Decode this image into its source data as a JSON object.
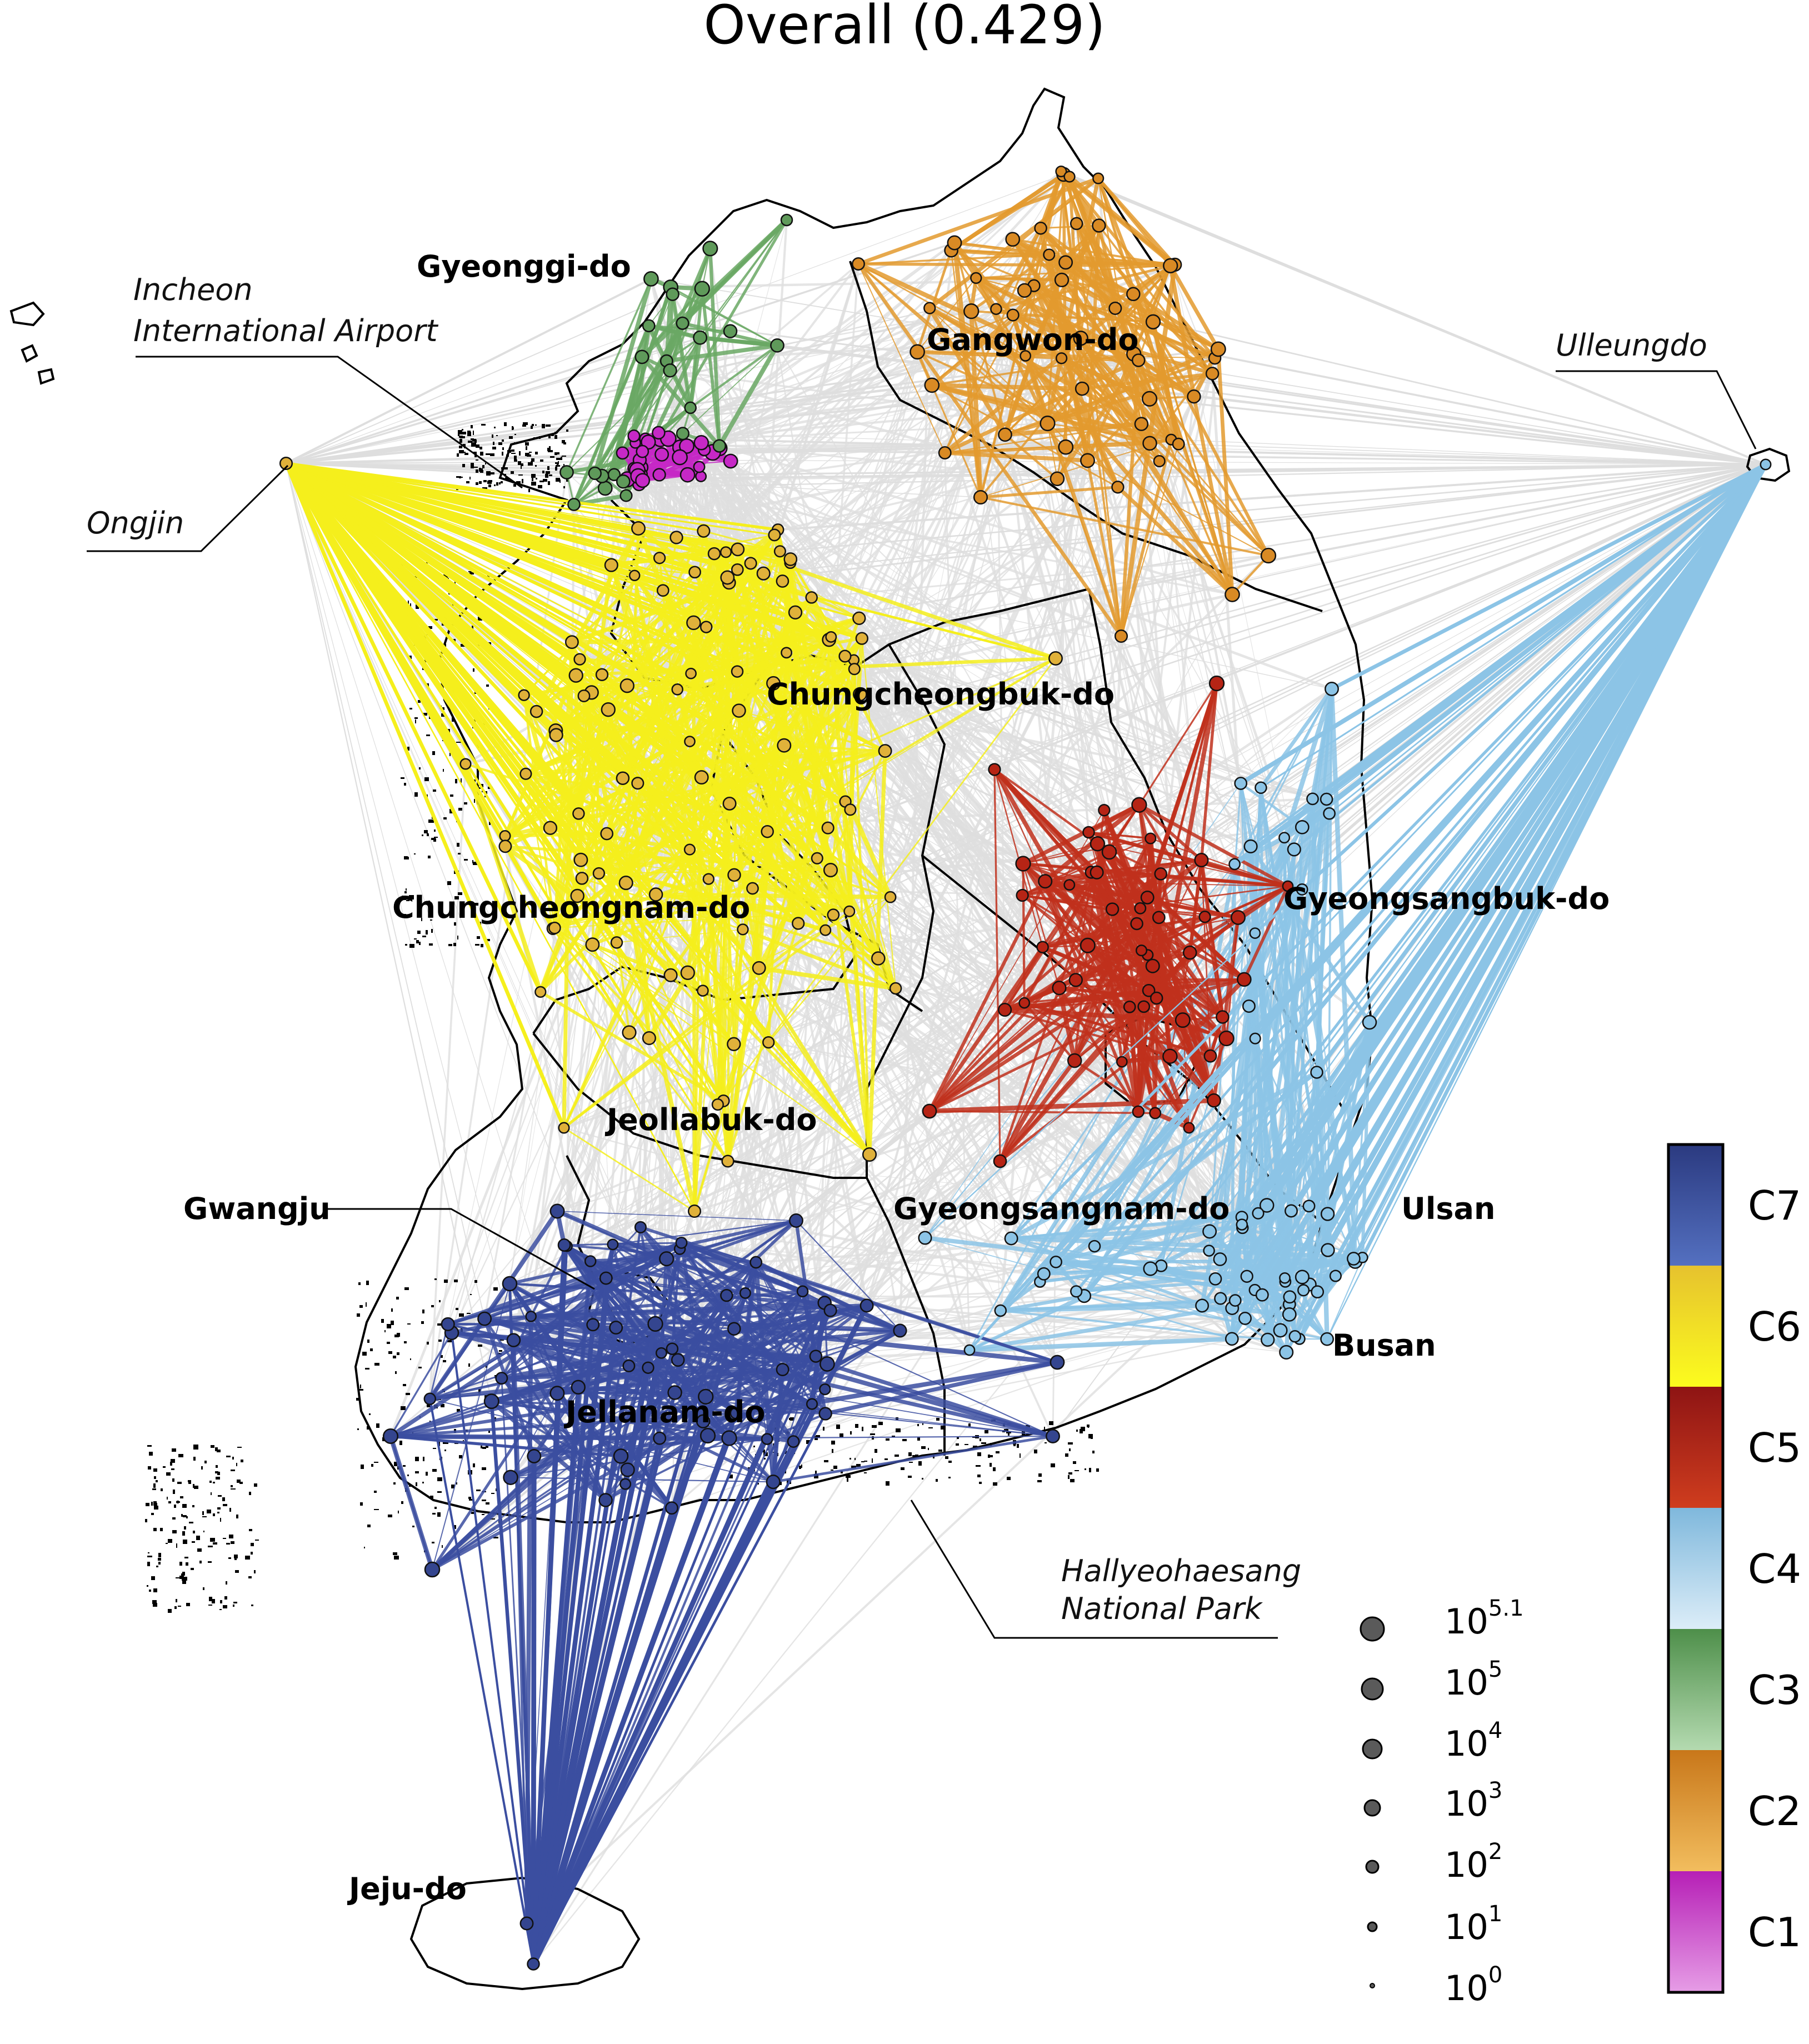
{
  "title": "Overall (0.429)",
  "regions": {
    "gyeonggi": "Gyeonggi-do",
    "gangwon": "Gangwon-do",
    "chungbuk": "Chungcheongbuk-do",
    "chungnam": "Chungcheongnam-do",
    "gyeongbuk": "Gyeongsangbuk-do",
    "jeonbuk": "Jeollabuk-do",
    "gyeongnam": "Gyeongsangnam-do",
    "ulsan": "Ulsan",
    "busan": "Busan",
    "gwangju": "Gwangju",
    "jeonnam": "Jellanam-do",
    "jeju": "Jeju-do"
  },
  "callouts": {
    "incheon_line1": "Incheon",
    "incheon_line2": "International Airport",
    "ongjin": "Ongjin",
    "ulleungdo": "Ulleungdo",
    "hallyeo_line1": "Hallyeohaesang",
    "hallyeo_line2": "National Park"
  },
  "size_legend": [
    {
      "base": "10",
      "exp": "5.1"
    },
    {
      "base": "10",
      "exp": "5"
    },
    {
      "base": "10",
      "exp": "4"
    },
    {
      "base": "10",
      "exp": "3"
    },
    {
      "base": "10",
      "exp": "2"
    },
    {
      "base": "10",
      "exp": "1"
    },
    {
      "base": "10",
      "exp": "0"
    }
  ],
  "colorbar": [
    {
      "label": "C7",
      "top": "#2b3a80",
      "bottom": "#5470c0"
    },
    {
      "label": "C6",
      "top": "#e6c22e",
      "bottom": "#fcfc1e"
    },
    {
      "label": "C5",
      "top": "#8e1414",
      "bottom": "#cf3d1e"
    },
    {
      "label": "C4",
      "top": "#7fb8dc",
      "bottom": "#dcedf8"
    },
    {
      "label": "C3",
      "top": "#4e8f4a",
      "bottom": "#b4dab0"
    },
    {
      "label": "C2",
      "top": "#c8771a",
      "bottom": "#f2bd5e"
    },
    {
      "label": "C1",
      "top": "#b61fb6",
      "bottom": "#e69de6"
    }
  ],
  "cluster_colors": {
    "C1": "#c628c6",
    "C2": "#e39a2e",
    "C3": "#6aa864",
    "C4": "#8cc4e6",
    "C5": "#c0301c",
    "C6": "#f5ef1c",
    "C7": "#3b4ea0",
    "inter": "#dedede"
  }
}
